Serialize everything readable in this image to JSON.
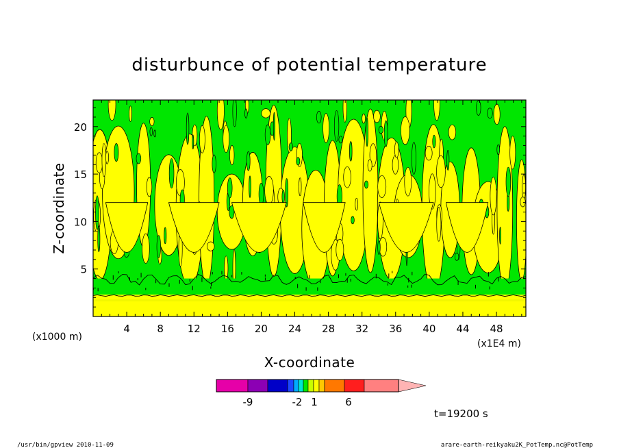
{
  "chart_data": {
    "type": "heatmap",
    "title": "disturbunce of potential temperature",
    "xlabel": "X-coordinate",
    "ylabel": "Z-coordinate",
    "x_unit": "(x1E4 m)",
    "y_unit": "(x1000 m)",
    "xlim": [
      0,
      51.5
    ],
    "ylim": [
      0,
      22.8
    ],
    "x_ticks": [
      4,
      8,
      12,
      16,
      20,
      24,
      28,
      32,
      36,
      40,
      44,
      48
    ],
    "y_ticks": [
      5,
      10,
      15,
      20
    ],
    "grid": false,
    "time_label": "t=19200 s",
    "colorbar": {
      "levels_labeled": [
        "-9",
        "-2",
        "1",
        "6"
      ],
      "colors": [
        "#e600a8",
        "#8c00b4",
        "#0000c8",
        "#1c46ff",
        "#00aaff",
        "#00e6d2",
        "#00e600",
        "#c8ff00",
        "#ffff00",
        "#ffc800",
        "#ff7800",
        "#ff1e1e",
        "#ff8080",
        "#ffb4b4"
      ]
    },
    "field_colors": {
      "negative": "#00e600",
      "positive": "#ffff00",
      "contour": "#000000"
    }
  },
  "footer": {
    "left": "/usr/bin/gpview   2010-11-09",
    "right": "arare-earth-reikyaku2K_PotTemp.nc@PotTemp"
  }
}
